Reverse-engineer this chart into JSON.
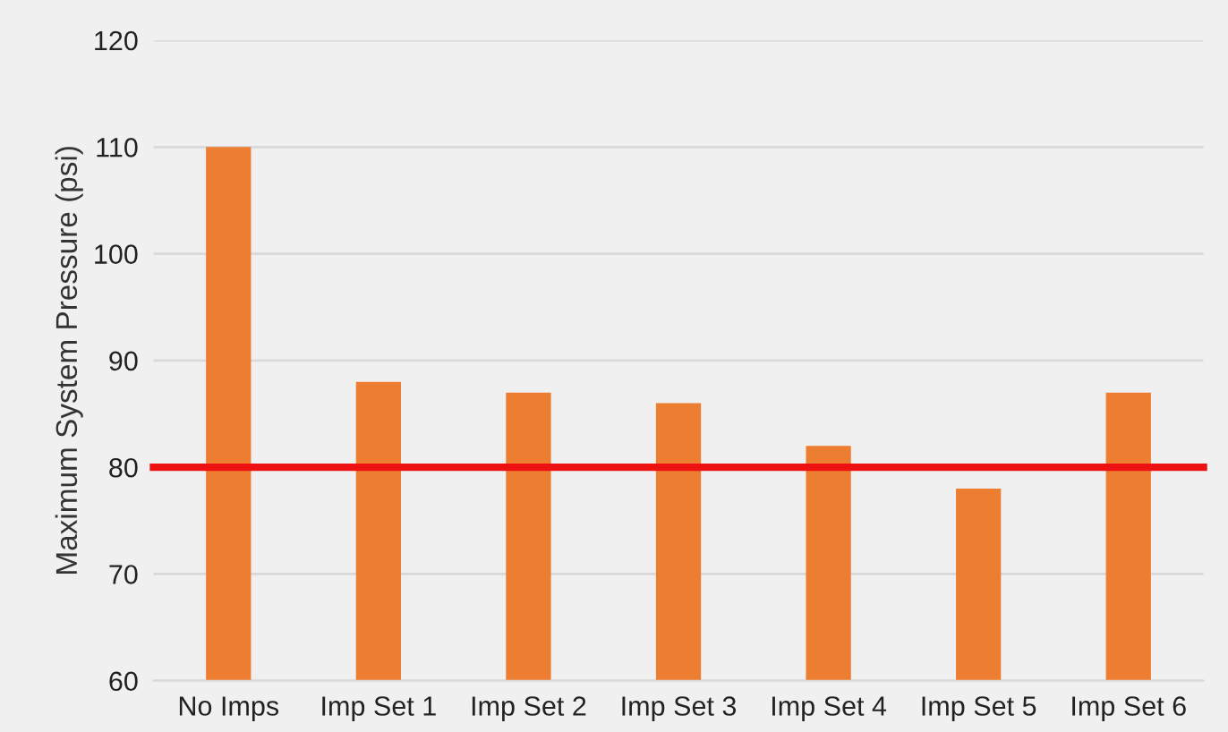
{
  "chart_data": {
    "type": "bar",
    "ylabel": "Maximum System Pressure (psi)",
    "categories": [
      "No Imps",
      "Imp Set 1",
      "Imp Set 2",
      "Imp Set 3",
      "Imp Set 4",
      "Imp Set 5",
      "Imp Set 6"
    ],
    "values": [
      110,
      88,
      87,
      86,
      82,
      78,
      87
    ],
    "color": "#ed7d31",
    "ylim": [
      60,
      120
    ],
    "yticks": [
      60,
      70,
      80,
      90,
      100,
      110,
      120
    ],
    "grid": "y",
    "ref_lines": [
      {
        "axis": "y",
        "value": 80,
        "color": "#ee1111",
        "line_style": "solid"
      }
    ]
  }
}
